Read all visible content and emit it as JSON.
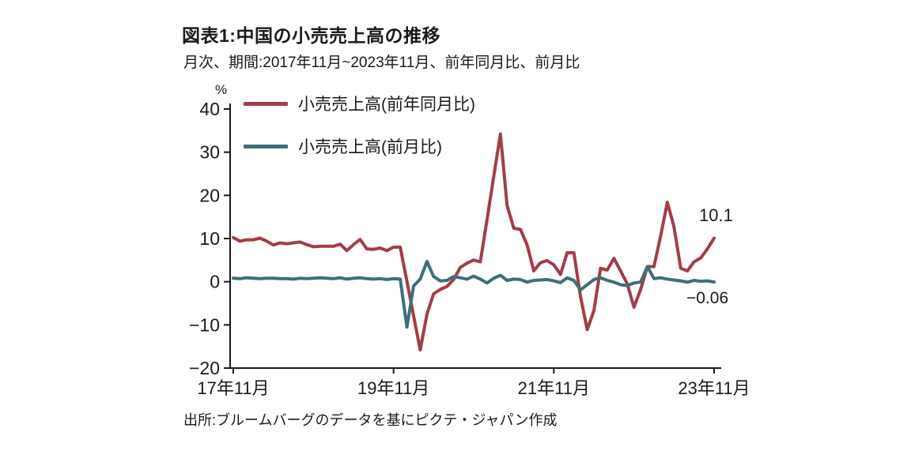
{
  "header": {
    "title": "図表1:中国の小売売上高の推移",
    "subtitle": "月次、期間:2017年11月~2023年11月、前年同月比、前月比"
  },
  "footer": {
    "source": "出所:ブルームバーグのデータを基にピクテ・ジャパン作成"
  },
  "chart_data": {
    "type": "line",
    "title": "図表1:中国の小売売上高の推移",
    "xlabel": "",
    "ylabel": "%",
    "ylim": [
      -20,
      40
    ],
    "grid": false,
    "legend_position": "top-left-inside",
    "ytick_values": [
      40,
      30,
      20,
      10,
      0,
      -10,
      -20
    ],
    "ytick_labels": [
      "40",
      "30",
      "20",
      "10",
      "0",
      "−10",
      "−20"
    ],
    "xtick_positions": [
      0,
      24,
      48,
      72
    ],
    "xtick_labels": [
      "17年11月",
      "19年11月",
      "21年11月",
      "23年11月"
    ],
    "x": [
      "2017-11",
      "2017-12",
      "2018-01",
      "2018-02",
      "2018-03",
      "2018-04",
      "2018-05",
      "2018-06",
      "2018-07",
      "2018-08",
      "2018-09",
      "2018-10",
      "2018-11",
      "2018-12",
      "2019-01",
      "2019-02",
      "2019-03",
      "2019-04",
      "2019-05",
      "2019-06",
      "2019-07",
      "2019-08",
      "2019-09",
      "2019-10",
      "2019-11",
      "2019-12",
      "2020-01",
      "2020-02",
      "2020-03",
      "2020-04",
      "2020-05",
      "2020-06",
      "2020-07",
      "2020-08",
      "2020-09",
      "2020-10",
      "2020-11",
      "2020-12",
      "2021-01",
      "2021-02",
      "2021-03",
      "2021-04",
      "2021-05",
      "2021-06",
      "2021-07",
      "2021-08",
      "2021-09",
      "2021-10",
      "2021-11",
      "2021-12",
      "2022-01",
      "2022-02",
      "2022-03",
      "2022-04",
      "2022-05",
      "2022-06",
      "2022-07",
      "2022-08",
      "2022-09",
      "2022-10",
      "2022-11",
      "2022-12",
      "2023-01",
      "2023-02",
      "2023-03",
      "2023-04",
      "2023-05",
      "2023-06",
      "2023-07",
      "2023-08",
      "2023-09",
      "2023-10",
      "2023-11"
    ],
    "series": [
      {
        "name": "小売売上高(前年同月比)",
        "color": "#A13E45",
        "values": [
          10.2,
          9.4,
          9.7,
          9.7,
          10.1,
          9.4,
          8.5,
          9.0,
          8.8,
          9.0,
          9.2,
          8.6,
          8.1,
          8.2,
          8.2,
          8.2,
          8.7,
          7.2,
          8.6,
          9.8,
          7.6,
          7.5,
          7.8,
          7.2,
          8.0,
          8.0,
          0.1,
          -7.9,
          -15.8,
          -7.5,
          -2.8,
          -1.8,
          -1.1,
          0.5,
          3.3,
          4.3,
          5.0,
          4.6,
          14.4,
          24.3,
          34.2,
          17.7,
          12.4,
          12.1,
          8.5,
          2.5,
          4.4,
          4.9,
          3.9,
          1.7,
          6.7,
          6.7,
          -3.5,
          -11.1,
          -6.7,
          3.1,
          2.7,
          5.4,
          2.5,
          -0.5,
          -5.9,
          -1.8,
          3.5,
          3.5,
          10.6,
          18.4,
          12.7,
          3.1,
          2.5,
          4.6,
          5.5,
          7.6,
          10.1
        ]
      },
      {
        "name": "小売売上高(前月比)",
        "color": "#3E6F78",
        "values": [
          0.8,
          0.7,
          0.9,
          0.8,
          0.7,
          0.8,
          0.8,
          0.7,
          0.7,
          0.6,
          0.8,
          0.7,
          0.8,
          0.9,
          0.8,
          0.7,
          0.9,
          0.6,
          0.8,
          0.9,
          0.7,
          0.6,
          0.7,
          0.5,
          0.7,
          0.6,
          -10.5,
          -1.0,
          0.6,
          4.7,
          1.2,
          0.2,
          0.3,
          1.2,
          0.9,
          0.6,
          1.3,
          0.6,
          -0.3,
          0.8,
          1.5,
          0.3,
          0.6,
          0.5,
          -0.1,
          0.3,
          0.4,
          0.5,
          0.2,
          -0.2,
          0.9,
          0.3,
          -1.9,
          -0.7,
          0.5,
          0.9,
          0.3,
          -0.1,
          -0.7,
          -0.9,
          -0.3,
          -0.1,
          3.5,
          0.7,
          0.9,
          0.6,
          0.4,
          0.2,
          -0.1,
          0.3,
          0.1,
          0.2,
          -0.06
        ]
      }
    ],
    "end_labels": {
      "yoy": "10.1",
      "mom": "−0.06"
    }
  }
}
